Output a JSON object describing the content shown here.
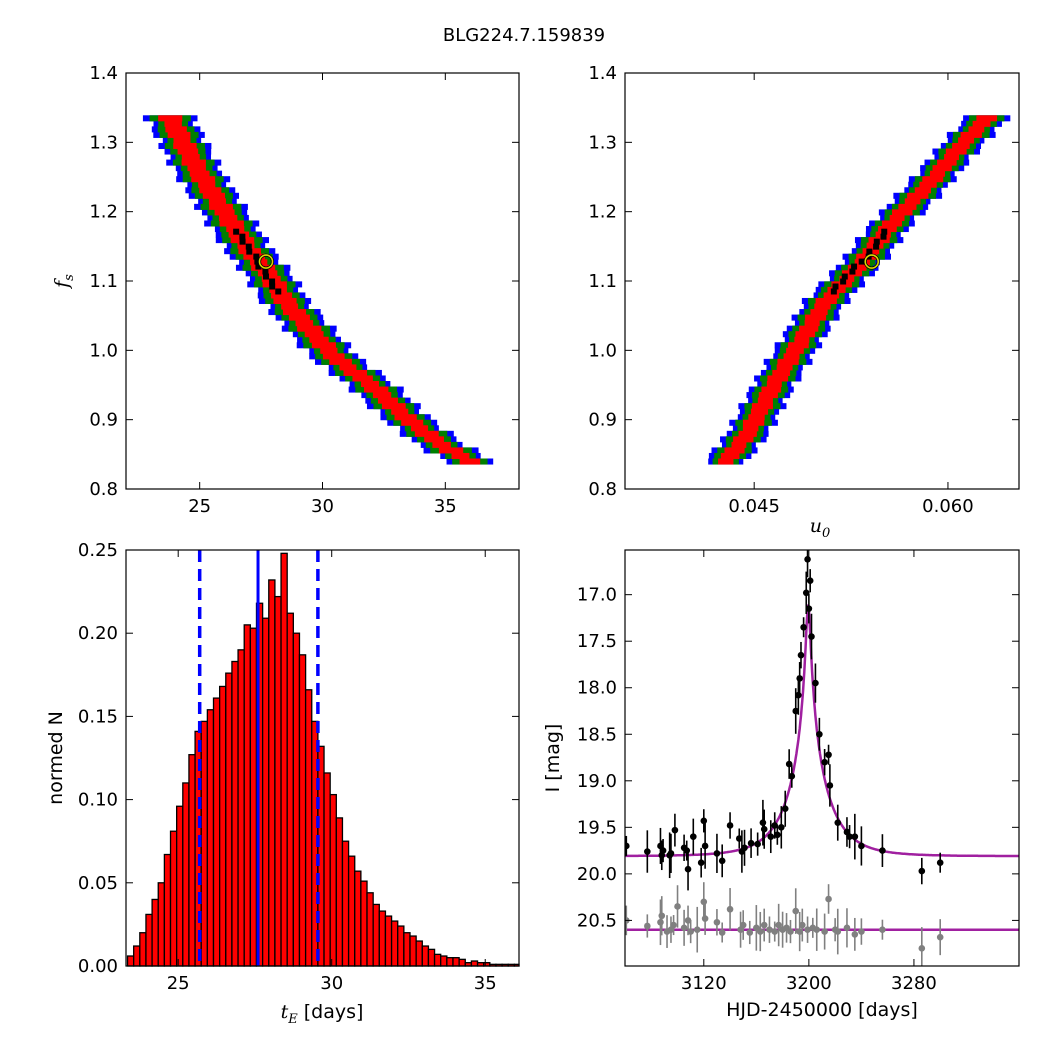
{
  "title": "BLG224.7.159839",
  "chart_data": [
    {
      "type": "heatmap",
      "panel": "fs-vs-tE",
      "xlabel": "",
      "ylabel": "f_s",
      "xlim": [
        22,
        38
      ],
      "ylim": [
        0.8,
        1.4
      ],
      "xticks": [
        "25",
        "30",
        "35"
      ],
      "yticks": [
        "0.8",
        "0.9",
        "1.0",
        "1.1",
        "1.2",
        "1.3",
        "1.4"
      ],
      "band_levels": [
        "blue",
        "green",
        "red",
        "black"
      ],
      "band_colors": {
        "blue": "#0000ff",
        "green": "#007f00",
        "red": "#ff0000",
        "black": "#000000"
      },
      "ridge": [
        [
          23.8,
          1.335
        ],
        [
          25.0,
          1.255
        ],
        [
          26.0,
          1.2
        ],
        [
          27.0,
          1.145
        ],
        [
          27.8,
          1.11
        ],
        [
          28.5,
          1.07
        ],
        [
          29.5,
          1.03
        ],
        [
          30.5,
          0.99
        ],
        [
          32.0,
          0.95
        ],
        [
          33.5,
          0.9
        ],
        [
          34.8,
          0.865
        ],
        [
          36.0,
          0.84
        ]
      ],
      "best_fit": [
        27.7,
        1.128
      ],
      "grid": false
    },
    {
      "type": "heatmap",
      "panel": "fs-vs-u0",
      "xlabel": "u_0",
      "ylabel": "",
      "xlim": [
        0.035,
        0.0655
      ],
      "ylim": [
        0.8,
        1.4
      ],
      "xticks": [
        "0.045",
        "0.060"
      ],
      "yticks": [
        "0.8",
        "0.9",
        "1.0",
        "1.1",
        "1.2",
        "1.3",
        "1.4"
      ],
      "band_levels": [
        "blue",
        "green",
        "red",
        "black"
      ],
      "ridge": [
        [
          0.0428,
          0.84
        ],
        [
          0.0445,
          0.88
        ],
        [
          0.0465,
          0.95
        ],
        [
          0.0485,
          1.01
        ],
        [
          0.0505,
          1.07
        ],
        [
          0.0535,
          1.13
        ],
        [
          0.0555,
          1.18
        ],
        [
          0.0585,
          1.24
        ],
        [
          0.061,
          1.295
        ],
        [
          0.063,
          1.335
        ]
      ],
      "best_fit": [
        0.0541,
        1.128
      ],
      "grid": false
    },
    {
      "type": "bar",
      "panel": "tE-histogram",
      "xlabel": "t_E  [days]",
      "ylabel": "normed N",
      "xlim": [
        23.3,
        36.1
      ],
      "ylim": [
        0,
        0.25
      ],
      "xticks": [
        "25",
        "30",
        "35"
      ],
      "yticks": [
        "0.00",
        "0.05",
        "0.10",
        "0.15",
        "0.20",
        "0.25"
      ],
      "bin_start": 23.35,
      "bin_width": 0.2,
      "values": [
        0.006,
        0.012,
        0.02,
        0.031,
        0.04,
        0.05,
        0.067,
        0.081,
        0.096,
        0.11,
        0.127,
        0.141,
        0.147,
        0.154,
        0.161,
        0.168,
        0.176,
        0.183,
        0.19,
        0.205,
        0.203,
        0.218,
        0.209,
        0.232,
        0.222,
        0.248,
        0.212,
        0.2,
        0.187,
        0.166,
        0.147,
        0.132,
        0.116,
        0.103,
        0.089,
        0.075,
        0.066,
        0.057,
        0.051,
        0.044,
        0.037,
        0.033,
        0.03,
        0.027,
        0.024,
        0.02,
        0.018,
        0.015,
        0.012,
        0.01,
        0.007,
        0.006,
        0.005,
        0.005,
        0.004,
        0.002,
        0.003,
        0.002,
        0.002,
        0.001,
        0.001,
        0.001,
        0.001,
        0.001
      ],
      "bar_color": "#ff0000",
      "best_value": 27.6,
      "interval": [
        25.7,
        29.55
      ],
      "line_color": "#0000ff",
      "grid": false
    },
    {
      "type": "scatter",
      "panel": "light-curve",
      "xlabel": "HJD-2450000 [days]",
      "ylabel": "I [mag]",
      "xlim": [
        3060,
        3360
      ],
      "ylim": [
        21.0,
        16.5
      ],
      "xticks": [
        "3120",
        "3200",
        "3280"
      ],
      "yticks": [
        "17.0",
        "17.5",
        "18.0",
        "18.5",
        "19.0",
        "19.5",
        "20.0",
        "20.5"
      ],
      "model": {
        "t0": 3199.5,
        "u0": 0.054,
        "tE": 27.7,
        "fs": 1.13,
        "baseline": 19.81,
        "color": "#a020a0"
      },
      "series": [
        {
          "color": "#000000",
          "t": [
            3061,
            3077,
            3087,
            3088,
            3089,
            3094,
            3095,
            3098,
            3105,
            3107,
            3108,
            3112,
            3118,
            3120,
            3121,
            3130,
            3134,
            3140,
            3147,
            3149,
            3151,
            3156,
            3161,
            3165,
            3166,
            3171,
            3174,
            3176,
            3179,
            3182,
            3185,
            3187,
            3190,
            3192,
            3193,
            3194,
            3196,
            3198,
            3199,
            3200,
            3201,
            3202,
            3205,
            3208,
            3212,
            3215,
            3216,
            3222,
            3229,
            3231,
            3235,
            3240,
            3256,
            3286,
            3300
          ],
          "mag": [
            19.7,
            19.76,
            19.7,
            19.8,
            19.75,
            19.8,
            19.78,
            19.53,
            19.72,
            19.75,
            19.95,
            19.6,
            19.88,
            19.43,
            19.7,
            19.78,
            19.86,
            19.48,
            19.62,
            19.76,
            19.72,
            19.67,
            19.68,
            19.45,
            19.52,
            19.6,
            19.48,
            19.58,
            19.5,
            19.3,
            18.82,
            18.95,
            18.25,
            18.08,
            17.9,
            17.65,
            17.35,
            16.98,
            16.62,
            17.15,
            16.85,
            17.45,
            17.95,
            18.5,
            18.8,
            18.72,
            19.05,
            19.45,
            19.55,
            19.6,
            19.6,
            19.7,
            19.75,
            19.97,
            19.88
          ]
        },
        {
          "color": "#808080",
          "t": [
            3061,
            3077,
            3087,
            3088,
            3092,
            3095,
            3097,
            3100,
            3105,
            3108,
            3110,
            3115,
            3120,
            3121,
            3130,
            3134,
            3140,
            3148,
            3150,
            3155,
            3160,
            3163,
            3166,
            3170,
            3174,
            3177,
            3180,
            3183,
            3186,
            3190,
            3193,
            3195,
            3199,
            3203,
            3206,
            3212,
            3215,
            3220,
            3222,
            3229,
            3235,
            3240,
            3256,
            3286,
            3300
          ],
          "mag": [
            20.5,
            20.56,
            20.52,
            20.45,
            20.62,
            20.6,
            20.55,
            20.35,
            20.58,
            20.5,
            20.62,
            20.6,
            20.3,
            20.48,
            20.52,
            20.63,
            20.38,
            20.6,
            20.55,
            20.63,
            20.58,
            20.62,
            20.55,
            20.6,
            20.62,
            20.55,
            20.6,
            20.58,
            20.62,
            20.4,
            20.62,
            20.55,
            20.6,
            20.58,
            20.6,
            20.62,
            20.27,
            20.6,
            20.62,
            20.58,
            20.65,
            20.62,
            20.6,
            20.8,
            20.68
          ]
        }
      ],
      "faint_model_level": 20.6,
      "grid": false
    }
  ]
}
